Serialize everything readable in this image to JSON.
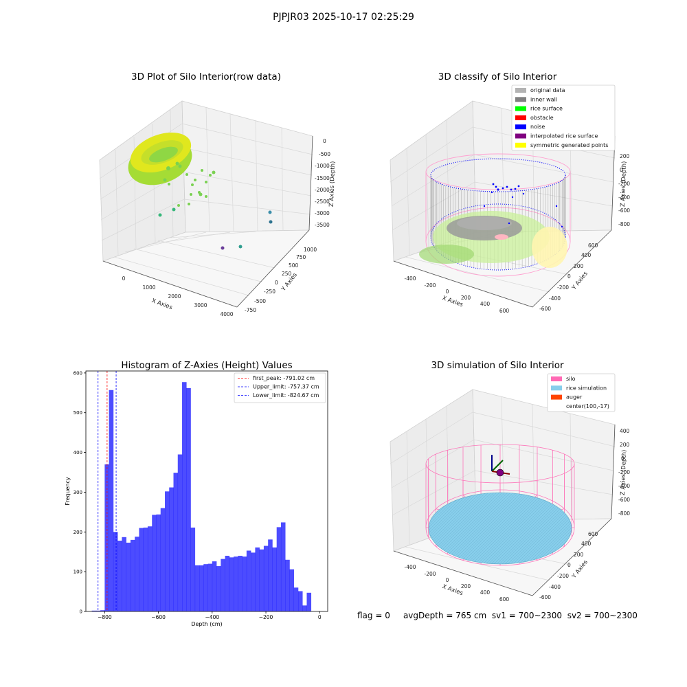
{
  "figure": {
    "suptitle": "PJPJR03 2025-10-17 02:25:29",
    "footer": {
      "flag": "flag = 0",
      "avg_depth": "avgDepth = 765 cm",
      "sv1": "sv1 = 700~2300",
      "sv2": "sv2 = 700~2300"
    }
  },
  "panels": {
    "raw": {
      "title": "3D Plot of Silo Interior(row data)",
      "xlabel": "X Axies",
      "ylabel": "Y Axies",
      "zlabel": "Z Axies (Depth)",
      "xticks": [
        "0",
        "1000",
        "2000",
        "3000",
        "4000"
      ],
      "yticks": [
        "-750",
        "-500",
        "-250",
        "0",
        "250",
        "500",
        "750",
        "1000"
      ],
      "zticks": [
        "0",
        "-500",
        "-1000",
        "-1500",
        "-2000",
        "-2500",
        "-3000",
        "-3500"
      ]
    },
    "classify": {
      "title": "3D classify of Silo Interior",
      "xlabel": "X Axies",
      "ylabel": "Y Axies",
      "zlabel": "Z Axies (Depth)",
      "xticks": [
        "-400",
        "-200",
        "0",
        "200",
        "400",
        "600"
      ],
      "yticks": [
        "-600",
        "-400",
        "-200",
        "0",
        "200",
        "400",
        "600"
      ],
      "zticks": [
        "200",
        "0",
        "-200",
        "-400",
        "-600",
        "-800"
      ],
      "legend": [
        {
          "label": "original data",
          "color": "#b3b3b3"
        },
        {
          "label": "inner wall",
          "color": "#808080"
        },
        {
          "label": "rice surface",
          "color": "#00ff00"
        },
        {
          "label": "obstacle",
          "color": "#ff0000"
        },
        {
          "label": "noise",
          "color": "#0000ff"
        },
        {
          "label": "interpolated rice surface",
          "color": "#800080"
        },
        {
          "label": "symmetric generated points",
          "color": "#ffff00"
        }
      ]
    },
    "simulation": {
      "title": "3D simulation of Silo Interior",
      "xlabel": "X Axies",
      "ylabel": "Y Axies",
      "zlabel": "Z Axies (Depth)",
      "xticks": [
        "-400",
        "-200",
        "0",
        "200",
        "400",
        "600"
      ],
      "yticks": [
        "-600",
        "-400",
        "-200",
        "0",
        "200",
        "400",
        "600"
      ],
      "zticks": [
        "400",
        "200",
        "0",
        "-200",
        "-400",
        "-600",
        "-800"
      ],
      "legend": [
        {
          "label": "silo",
          "color": "#ff69b4"
        },
        {
          "label": "rice simulation",
          "color": "#87ceeb"
        },
        {
          "label": "auger",
          "color": "#ff4500"
        },
        {
          "label": "center(100,-17)",
          "color": ""
        }
      ]
    }
  },
  "chart_data": {
    "type": "bar",
    "title": "Histogram of Z-Axies (Height) Values",
    "xlabel": "Depth (cm)",
    "ylabel": "Frequency",
    "xlim": [
      -870,
      30
    ],
    "ylim": [
      0,
      605
    ],
    "xticks": [
      -800,
      -600,
      -400,
      -200,
      0
    ],
    "yticks": [
      0,
      100,
      200,
      300,
      400,
      500,
      600
    ],
    "bar_color": "#0000ff",
    "bin_width": 16,
    "bin_start": -848,
    "values": [
      2,
      2,
      3,
      370,
      557,
      200,
      178,
      187,
      173,
      180,
      188,
      210,
      211,
      214,
      243,
      244,
      260,
      302,
      312,
      349,
      395,
      577,
      562,
      211,
      116,
      116,
      119,
      120,
      126,
      114,
      132,
      140,
      136,
      138,
      140,
      138,
      153,
      148,
      161,
      156,
      165,
      181,
      161,
      212,
      224,
      130,
      106,
      60,
      51,
      15,
      47
    ],
    "vlines": [
      {
        "label": "first_peak: -791.02 cm",
        "x": -791.02,
        "color": "#ff0000"
      },
      {
        "label": "Upper_limit: -757.37 cm",
        "x": -757.37,
        "color": "#0000ff"
      },
      {
        "label": "Lower_limit: -824.67 cm",
        "x": -824.67,
        "color": "#0000ff"
      }
    ]
  }
}
